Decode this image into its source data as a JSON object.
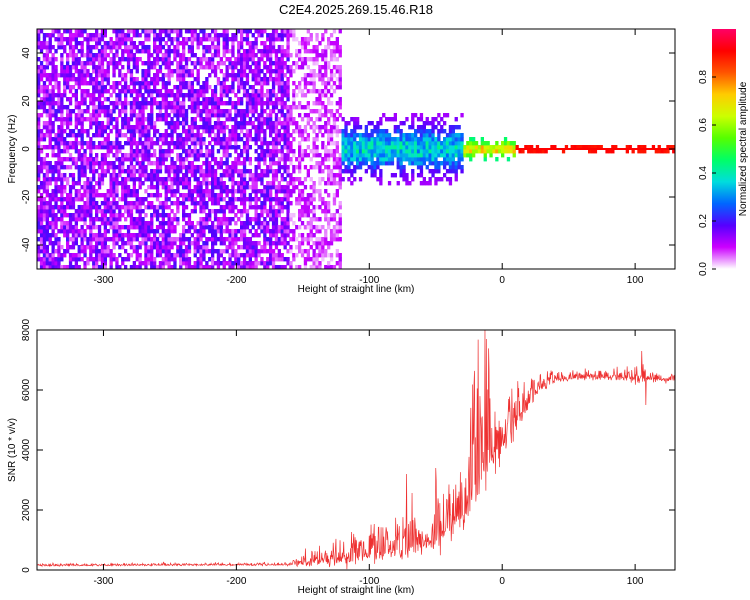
{
  "title": "C2E4.2025.269.15.46.R18",
  "chart_data": [
    {
      "type": "heatmap",
      "xlabel": "Height of straight line (km)",
      "ylabel": "Frequency (Hz)",
      "xlim": [
        -350,
        130
      ],
      "ylim": [
        -50,
        50
      ],
      "xticks": [
        -300,
        -200,
        -100,
        0,
        100
      ],
      "yticks": [
        -40,
        -20,
        0,
        20,
        40
      ],
      "colorbar": {
        "label": "Normalized spectral amplitude",
        "range": [
          0,
          1
        ],
        "ticks": [
          0.0,
          0.2,
          0.4,
          0.6,
          0.8
        ],
        "tick_labels": [
          "0.0",
          "0.2",
          "0.4",
          "0.6",
          "0.8"
        ],
        "colormap": [
          "#ffffff",
          "#cc00ff",
          "#5500ff",
          "#0066ff",
          "#00dddd",
          "#00ff66",
          "#55ff00",
          "#ccff00",
          "#ffcc00",
          "#ff5500",
          "#ff0000",
          "#ff0066"
        ]
      },
      "regions": [
        {
          "x": [
            -350,
            -160
          ],
          "freq_spread_hz": 50,
          "amplitude": [
            0.05,
            0.2
          ],
          "character": "broadband noise"
        },
        {
          "x": [
            -160,
            -120
          ],
          "freq_spread_hz": 50,
          "amplitude": [
            0.02,
            0.12
          ],
          "character": "fading broadband noise"
        },
        {
          "x": [
            -120,
            -30
          ],
          "freq_spread_hz": 15,
          "amplitude": [
            0.1,
            0.45
          ],
          "character": "converging signal"
        },
        {
          "x": [
            -30,
            10
          ],
          "freq_spread_hz": 5,
          "amplitude": [
            0.4,
            0.8
          ],
          "character": "narrowing carrier"
        },
        {
          "x": [
            10,
            130
          ],
          "freq_spread_hz": 1.5,
          "amplitude": [
            0.85,
            1.0
          ],
          "character": "stable carrier at 0 Hz"
        }
      ]
    },
    {
      "type": "line",
      "xlabel": "Height of straight line (km)",
      "ylabel": "SNR (10 * v/v)",
      "xlim": [
        -350,
        130
      ],
      "ylim": [
        0,
        8000
      ],
      "xticks": [
        -300,
        -200,
        -100,
        0,
        100
      ],
      "yticks": [
        0,
        2000,
        4000,
        6000,
        8000
      ],
      "color": "#ee3030",
      "series": [
        {
          "x": [
            -350,
            -300,
            -250,
            -200,
            -160,
            -150,
            -140,
            -130,
            -120,
            -110,
            -100,
            -90,
            -80,
            -70,
            -60,
            -50,
            -40,
            -30,
            -25,
            -20,
            -15,
            -10,
            -5,
            0,
            5,
            10,
            15,
            20,
            25,
            30,
            35,
            40,
            50,
            60,
            70,
            80,
            90,
            100,
            110,
            120,
            130
          ],
          "y": [
            150,
            160,
            170,
            175,
            180,
            280,
            320,
            360,
            420,
            480,
            550,
            620,
            700,
            800,
            950,
            1150,
            1500,
            2000,
            2500,
            3200,
            3400,
            3800,
            4100,
            4400,
            4700,
            5000,
            5300,
            5600,
            5900,
            6100,
            6250,
            6350,
            6420,
            6430,
            6430,
            6430,
            6430,
            6400,
            6400,
            6350,
            6350
          ],
          "noise": [
            30,
            30,
            35,
            35,
            40,
            200,
            250,
            300,
            350,
            400,
            450,
            500,
            500,
            550,
            600,
            700,
            800,
            1000,
            1300,
            1800,
            1700,
            1300,
            1100,
            900,
            700,
            600,
            500,
            400,
            350,
            250,
            200,
            150,
            130,
            130,
            130,
            140,
            160,
            250,
            150,
            120,
            120
          ],
          "spikes": [
            {
              "x": -13,
              "y": 8000
            },
            {
              "x": -12,
              "y": 7700
            },
            {
              "x": -50,
              "y": 3400
            },
            {
              "x": -72,
              "y": 3200
            },
            {
              "x": 105,
              "y": 7300
            },
            {
              "x": 108,
              "y": 5500
            }
          ]
        }
      ]
    }
  ]
}
